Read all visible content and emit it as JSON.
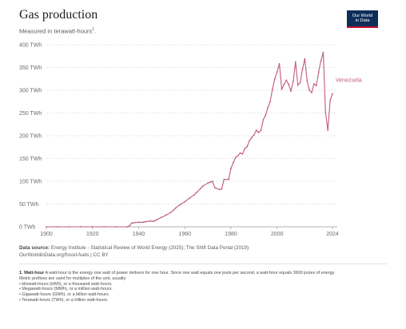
{
  "header": {
    "title": "Gas production",
    "subtitle": "Measured in terawatt-hours",
    "subtitle_sup": "1",
    "subtitle_end": ".",
    "logo_line1": "Our World",
    "logo_line2": "in Data"
  },
  "chart_data": {
    "type": "line",
    "title": "Gas production",
    "ylabel": "",
    "xlabel": "",
    "xlim": [
      1900,
      2024
    ],
    "ylim": [
      0,
      400
    ],
    "x_ticks": [
      "1900",
      "1920",
      "1940",
      "1960",
      "1980",
      "2000",
      "2024"
    ],
    "y_ticks": [
      "0 TWh",
      "50 TWh",
      "100 TWh",
      "150 TWh",
      "200 TWh",
      "250 TWh",
      "300 TWh",
      "350 TWh",
      "400 TWh"
    ],
    "grid": true,
    "series": [
      {
        "name": "Venezuela",
        "color": "#c15a77",
        "x": [
          1900,
          1905,
          1910,
          1915,
          1920,
          1925,
          1930,
          1935,
          1936,
          1937,
          1938,
          1940,
          1942,
          1943,
          1945,
          1946,
          1947,
          1948,
          1950,
          1952,
          1954,
          1955,
          1956,
          1958,
          1960,
          1962,
          1964,
          1965,
          1967,
          1968,
          1970,
          1971,
          1972,
          1973,
          1975,
          1976,
          1977,
          1979,
          1980,
          1981,
          1982,
          1983,
          1984,
          1985,
          1986,
          1987,
          1988,
          1989,
          1990,
          1991,
          1992,
          1993,
          1994,
          1995,
          1996,
          1997,
          1998,
          1999,
          2000,
          2001,
          2002,
          2003,
          2004,
          2005,
          2006,
          2007,
          2008,
          2009,
          2010,
          2011,
          2012,
          2013,
          2014,
          2015,
          2016,
          2017,
          2018,
          2019,
          2020,
          2021,
          2022,
          2023,
          2024
        ],
        "values": [
          0,
          0,
          0,
          0,
          0,
          0,
          0,
          0,
          2,
          8,
          9,
          10,
          10,
          11,
          13,
          12,
          13,
          16,
          21,
          26,
          32,
          36,
          41,
          49,
          55,
          63,
          70,
          75,
          85,
          90,
          96,
          98,
          100,
          86,
          82,
          83,
          104,
          104,
          128,
          141,
          152,
          156,
          162,
          160,
          172,
          176,
          189,
          196,
          202,
          212,
          207,
          212,
          235,
          245,
          262,
          275,
          302,
          325,
          340,
          358,
          302,
          313,
          322,
          313,
          298,
          320,
          362,
          311,
          317,
          346,
          369,
          321,
          300,
          295,
          314,
          310,
          340,
          365,
          383,
          252,
          212,
          278,
          292
        ]
      }
    ]
  },
  "source": {
    "label": "Data source:",
    "text": "Energy Institute - Statistical Review of World Energy (2025); The Shift Data Portal (2019)",
    "line2": "OurWorldinData.org/fossil-fuels | CC BY"
  },
  "footnote": {
    "title": "1. Watt-hour",
    "text": "A watt-hour is the energy one watt of power delivers for one hour. Since one watt equals one joule per second, a watt-hour equals 3600 joules of energy.",
    "intro": "Metric prefixes are used for multiples of the unit, usually:",
    "items": [
      "kilowatt-hours (kWh), or a thousand watt-hours.",
      "Megawatt-hours (MWh), or a million watt-hours.",
      "Gigawatt-hours (GWh), or a billion watt-hours.",
      "Terawatt-hours (TWh), or a trillion watt-hours."
    ]
  }
}
